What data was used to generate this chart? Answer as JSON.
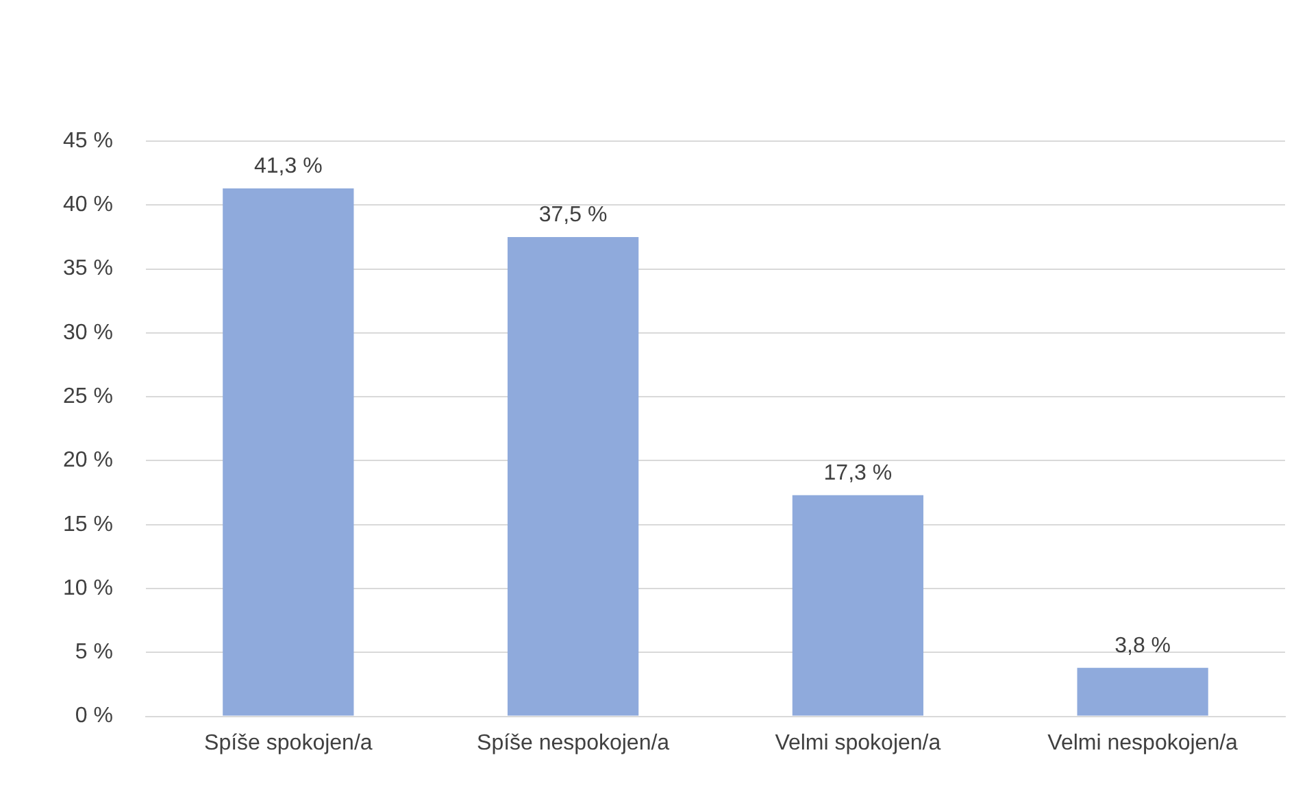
{
  "chart_data": {
    "type": "bar",
    "categories": [
      "Spíše spokojen/a",
      "Spíše nespokojen/a",
      "Velmi spokojen/a",
      "Velmi nespokojen/a"
    ],
    "values": [
      41.3,
      37.5,
      17.3,
      3.8
    ],
    "color": "#8faadc",
    "value_labels": [
      "41,3 %",
      "37,5 %",
      "17,3 %",
      "3,8 %"
    ],
    "ylim": [
      0,
      45
    ],
    "yticks": [
      {
        "value": 0,
        "label": "0 %"
      },
      {
        "value": 5,
        "label": "5 %"
      },
      {
        "value": 10,
        "label": "10 %"
      },
      {
        "value": 15,
        "label": "15 %"
      },
      {
        "value": 20,
        "label": "20 %"
      },
      {
        "value": 25,
        "label": "25 %"
      },
      {
        "value": 30,
        "label": "30 %"
      },
      {
        "value": 35,
        "label": "35 %"
      },
      {
        "value": 40,
        "label": "40 %"
      },
      {
        "value": 45,
        "label": "45 %"
      }
    ],
    "grid": "y",
    "legend": false
  }
}
